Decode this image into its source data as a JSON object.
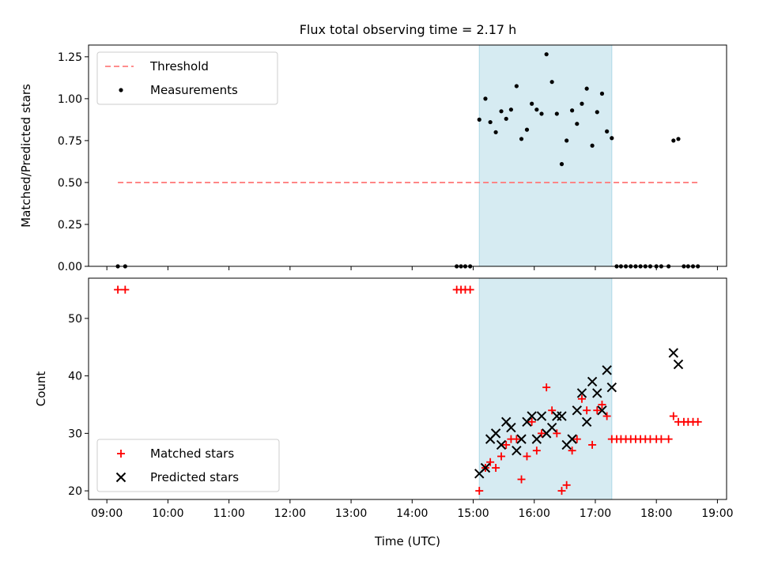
{
  "chart_data": [
    {
      "type": "scatter",
      "title": "Flux total observing time = 2.17 h",
      "xlabel": "",
      "ylabel": "Matched/Predicted stars",
      "xlim": [
        8.7,
        19.15
      ],
      "ylim": [
        0,
        1.32
      ],
      "yticks": [
        "0.00",
        "0.25",
        "0.50",
        "0.75",
        "1.00",
        "1.25"
      ],
      "ytick_values": [
        0,
        0.25,
        0.5,
        0.75,
        1.0,
        1.25
      ],
      "shaded_span": [
        15.1,
        17.27
      ],
      "legend": {
        "position": "upper-left",
        "entries": [
          "Threshold",
          "Measurements"
        ]
      },
      "series": [
        {
          "name": "Threshold",
          "style": "dashed-line",
          "color": "#ff7f7f",
          "x": [
            9.18,
            18.7
          ],
          "y": [
            0.5,
            0.5
          ]
        },
        {
          "name": "Measurements",
          "style": "dot",
          "color": "#000000",
          "x": [
            9.18,
            9.3,
            14.73,
            14.8,
            14.87,
            14.95,
            15.1,
            15.2,
            15.28,
            15.37,
            15.46,
            15.54,
            15.62,
            15.71,
            15.79,
            15.88,
            15.96,
            16.04,
            16.12,
            16.2,
            16.29,
            16.37,
            16.45,
            16.53,
            16.62,
            16.7,
            16.78,
            16.86,
            16.95,
            17.03,
            17.11,
            17.19,
            17.27,
            17.35,
            17.42,
            17.5,
            17.58,
            17.66,
            17.74,
            17.82,
            17.9,
            18.0,
            18.08,
            18.2,
            18.28,
            18.36,
            18.45,
            18.52,
            18.6,
            18.68
          ],
          "y": [
            0,
            0,
            0,
            0,
            0,
            0,
            0.875,
            1.0,
            0.86,
            0.8,
            0.925,
            0.88,
            0.935,
            1.075,
            0.76,
            0.815,
            0.97,
            0.935,
            0.91,
            1.265,
            1.1,
            0.91,
            0.61,
            0.75,
            0.93,
            0.85,
            0.97,
            1.06,
            0.72,
            0.92,
            1.03,
            0.805,
            0.765,
            0,
            0,
            0,
            0,
            0,
            0,
            0,
            0,
            0,
            0,
            0,
            0.75,
            0.76,
            0,
            0,
            0,
            0
          ]
        }
      ]
    },
    {
      "type": "scatter",
      "title": "",
      "xlabel": "Time (UTC)",
      "ylabel": "Count",
      "xlim": [
        8.7,
        19.15
      ],
      "ylim": [
        18.5,
        57
      ],
      "yticks": [
        "20",
        "30",
        "40",
        "50"
      ],
      "ytick_values": [
        20,
        30,
        40,
        50
      ],
      "xticks": [
        "09:00",
        "10:00",
        "11:00",
        "12:00",
        "13:00",
        "14:00",
        "15:00",
        "16:00",
        "17:00",
        "18:00",
        "19:00"
      ],
      "xtick_values": [
        9,
        10,
        11,
        12,
        13,
        14,
        15,
        16,
        17,
        18,
        19
      ],
      "shaded_span": [
        15.1,
        17.27
      ],
      "legend": {
        "position": "lower-left",
        "entries": [
          "Matched stars",
          "Predicted stars"
        ]
      },
      "series": [
        {
          "name": "Matched stars",
          "marker": "plus",
          "color": "#ff0000",
          "x": [
            9.18,
            9.3,
            14.73,
            14.8,
            14.87,
            14.95,
            15.1,
            15.2,
            15.28,
            15.37,
            15.46,
            15.54,
            15.62,
            15.71,
            15.79,
            15.88,
            15.96,
            16.04,
            16.12,
            16.2,
            16.29,
            16.37,
            16.45,
            16.53,
            16.62,
            16.7,
            16.78,
            16.86,
            16.95,
            17.03,
            17.11,
            17.19,
            17.27,
            17.35,
            17.42,
            17.5,
            17.58,
            17.66,
            17.74,
            17.82,
            17.9,
            18.0,
            18.08,
            18.2,
            18.28,
            18.36,
            18.45,
            18.52,
            18.6,
            18.68
          ],
          "y": [
            55,
            55,
            55,
            55,
            55,
            55,
            20,
            24,
            25,
            24,
            26,
            28,
            29,
            29,
            22,
            26,
            32,
            27,
            30,
            38,
            34,
            30,
            20,
            21,
            27,
            29,
            36,
            34,
            28,
            34,
            35,
            33,
            29,
            29,
            29,
            29,
            29,
            29,
            29,
            29,
            29,
            29,
            29,
            29,
            33,
            32,
            32,
            32,
            32,
            32
          ]
        },
        {
          "name": "Predicted stars",
          "marker": "x",
          "color": "#000000",
          "x": [
            15.1,
            15.2,
            15.28,
            15.37,
            15.46,
            15.54,
            15.62,
            15.71,
            15.79,
            15.88,
            15.96,
            16.04,
            16.12,
            16.2,
            16.29,
            16.37,
            16.45,
            16.53,
            16.62,
            16.7,
            16.78,
            16.86,
            16.95,
            17.03,
            17.11,
            17.19,
            17.27,
            18.28,
            18.36
          ],
          "y": [
            23,
            24,
            29,
            30,
            28,
            32,
            31,
            27,
            29,
            32,
            33,
            29,
            33,
            30,
            31,
            33,
            33,
            28,
            29,
            34,
            37,
            32,
            39,
            37,
            34,
            41,
            38,
            44,
            42
          ]
        }
      ]
    }
  ]
}
